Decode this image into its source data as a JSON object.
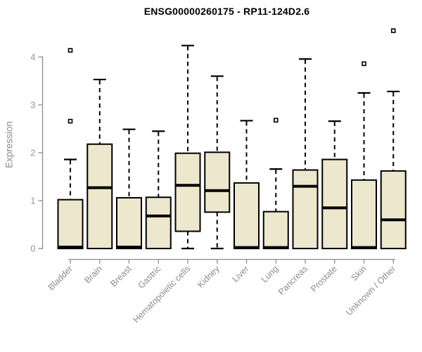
{
  "chart_data": {
    "type": "boxplot",
    "title": "ENSG00000260175 - RP11-124D2.6",
    "ylabel": "Expression",
    "xlabel": "",
    "ylim": [
      0,
      4.6
    ],
    "yticks": [
      0,
      1,
      2,
      3,
      4
    ],
    "grid": false,
    "legend": "none",
    "categories": [
      "Bladder",
      "Brain",
      "Breast",
      "Gastric",
      "Hematopoietic cells",
      "Kidney",
      "Liver",
      "Lung",
      "Pancreas",
      "Prostate",
      "Skin",
      "Unknown / Other"
    ],
    "series": [
      {
        "name": "Bladder",
        "low": 0,
        "q1": 0,
        "median": 0.03,
        "q3": 1.02,
        "high": 1.86,
        "outliers": [
          2.66,
          4.14
        ]
      },
      {
        "name": "Brain",
        "low": 0,
        "q1": 0,
        "median": 1.27,
        "q3": 2.18,
        "high": 3.53,
        "outliers": []
      },
      {
        "name": "Breast",
        "low": 0,
        "q1": 0,
        "median": 0.03,
        "q3": 1.06,
        "high": 2.49,
        "outliers": []
      },
      {
        "name": "Gastric",
        "low": 0,
        "q1": 0,
        "median": 0.68,
        "q3": 1.07,
        "high": 2.45,
        "outliers": []
      },
      {
        "name": "Hematopoietic cells",
        "low": 0,
        "q1": 0.36,
        "median": 1.32,
        "q3": 1.99,
        "high": 4.24,
        "outliers": []
      },
      {
        "name": "Kidney",
        "low": 0,
        "q1": 0.76,
        "median": 1.21,
        "q3": 2.01,
        "high": 3.6,
        "outliers": []
      },
      {
        "name": "Liver",
        "low": 0,
        "q1": 0,
        "median": 0.02,
        "q3": 1.37,
        "high": 2.67,
        "outliers": []
      },
      {
        "name": "Lung",
        "low": 0,
        "q1": 0,
        "median": 0.02,
        "q3": 0.77,
        "high": 1.66,
        "outliers": [
          2.68
        ]
      },
      {
        "name": "Pancreas",
        "low": 0,
        "q1": 0,
        "median": 1.3,
        "q3": 1.64,
        "high": 3.96,
        "outliers": []
      },
      {
        "name": "Prostate",
        "low": 0,
        "q1": 0,
        "median": 0.85,
        "q3": 1.86,
        "high": 2.66,
        "outliers": []
      },
      {
        "name": "Skin",
        "low": 0,
        "q1": 0,
        "median": 0.02,
        "q3": 1.43,
        "high": 3.25,
        "outliers": [
          3.86
        ]
      },
      {
        "name": "Unknown / Other",
        "low": 0,
        "q1": 0,
        "median": 0.6,
        "q3": 1.62,
        "high": 3.28,
        "outliers": [
          4.55
        ]
      }
    ],
    "colors": {
      "box_fill": "#EDE7CD",
      "box_border": "#000000",
      "median": "#000000",
      "whisker": "#000000",
      "axis_line": "#8c8c8c",
      "y_tick_label": "#9095a0",
      "x_tick_label": "#8c8c8c",
      "title": "#000000",
      "background": "#ffffff"
    }
  }
}
